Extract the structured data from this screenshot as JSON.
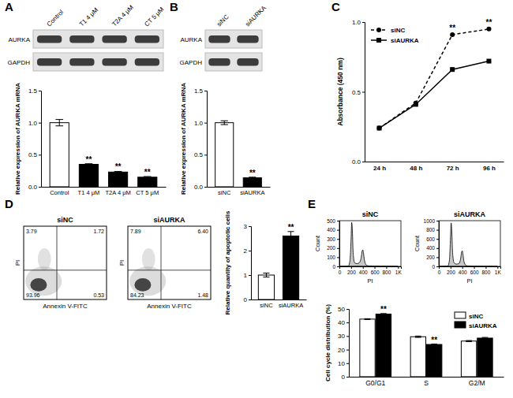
{
  "chart_data": [
    {
      "type": "blot",
      "panel": "A",
      "rows": [
        "AURKA",
        "GAPDH"
      ],
      "lanes": [
        "Control",
        "T1 4 μM",
        "T2A 4 μM",
        "CT 5 μM"
      ]
    },
    {
      "type": "bar",
      "y_label": "Relative expression of AURKA mRNA",
      "categories": [
        "Control",
        "T1 4 μM",
        "T2A 4 μM",
        "CT 5 μM"
      ],
      "values": [
        1.0,
        0.35,
        0.23,
        0.15
      ],
      "errors": [
        0.05,
        0.01,
        0.01,
        0.01
      ],
      "annotations": [
        null,
        "**",
        "**",
        "**"
      ],
      "ylim": [
        0,
        1.5
      ],
      "yticks": [
        {
          "value": 0,
          "label": "0.0"
        },
        0.5,
        {
          "value": 1,
          "label": "1.0"
        },
        1.5
      ],
      "colors": [
        "#ffffff",
        "#000000",
        "#000000",
        "#000000"
      ]
    },
    {
      "type": "blot",
      "panel": "B",
      "rows": [
        "AURKA",
        "GAPDH"
      ],
      "lanes": [
        "siNC",
        "siAURKA"
      ]
    },
    {
      "type": "bar",
      "y_label": "Relative expression of AURKA mRNA",
      "categories": [
        "siNC",
        "siAURKA"
      ],
      "values": [
        1.0,
        0.14
      ],
      "errors": [
        0.03,
        0.01
      ],
      "annotations": [
        null,
        "**"
      ],
      "ylim": [
        0,
        1.5
      ],
      "yticks": [
        {
          "value": 0,
          "label": "0.0"
        },
        0.5,
        {
          "value": 1,
          "label": "1.0"
        },
        1.5
      ],
      "colors": [
        "#ffffff",
        "#000000"
      ]
    },
    {
      "type": "line",
      "panel": "C",
      "y_label": "Absorbance (450 nm)",
      "x": [
        "24 h",
        "48 h",
        "72 h",
        "96 h"
      ],
      "series": [
        {
          "name": "siNC",
          "color": "#000000",
          "marker": "circle",
          "line_style": "dashed",
          "values": [
            0.24,
            0.42,
            0.91,
            0.95
          ]
        },
        {
          "name": "siAURKA",
          "color": "#000000",
          "marker": "square",
          "line_style": "solid",
          "values": [
            0.24,
            0.41,
            0.66,
            0.72
          ]
        }
      ],
      "annotations": [
        null,
        null,
        "**",
        "**"
      ],
      "ylim": [
        0,
        1.0
      ],
      "yticks": [
        {
          "value": 0,
          "label": "0.0"
        },
        0.5,
        {
          "value": 1,
          "label": "1.0"
        }
      ],
      "legend": "upper left"
    },
    {
      "type": "flow_quadrant",
      "panel": "D",
      "x_label": "Annexin V-FITC",
      "y_label": "PI",
      "plots": [
        {
          "title": "siNC",
          "quadrants": [
            "3.79",
            "1.72",
            "93.96",
            "0.53"
          ]
        },
        {
          "title": "siAURKA",
          "quadrants": [
            "7.89",
            "6.40",
            "84.23",
            "1.48"
          ]
        }
      ]
    },
    {
      "type": "bar",
      "y_label": "Relative quantity of apoptotic cells",
      "categories": [
        "siNC",
        "siAURKA"
      ],
      "values": [
        1.0,
        2.6
      ],
      "errors": [
        0.08,
        0.18
      ],
      "annotations": [
        null,
        "**"
      ],
      "ylim": [
        0,
        3
      ],
      "yticks": [
        0,
        1,
        2,
        3
      ],
      "colors": [
        "#ffffff",
        "#000000"
      ]
    },
    {
      "type": "area",
      "panel": "E",
      "title": "siNC",
      "x_label": "PI",
      "y_label": "Count",
      "x": [
        0,
        150,
        180,
        200,
        210,
        220,
        235,
        260,
        300,
        340,
        370,
        390,
        400,
        410,
        430,
        460,
        500,
        600,
        1000
      ],
      "values": [
        0,
        2,
        60,
        300,
        480,
        420,
        150,
        40,
        30,
        40,
        90,
        170,
        180,
        150,
        60,
        15,
        5,
        2,
        0
      ],
      "xlim": [
        0,
        1050
      ],
      "xticks": [
        0,
        200,
        400,
        600,
        800,
        {
          "value": 1000,
          "label": "1K"
        }
      ],
      "ylim": [
        0,
        500
      ],
      "yticks": [
        0,
        100,
        200,
        300,
        400,
        500
      ],
      "color": "#c8c8c8"
    },
    {
      "type": "area",
      "title": "siAURKA",
      "x_label": "PI",
      "y_label": "Count",
      "x": [
        0,
        150,
        180,
        200,
        210,
        220,
        235,
        260,
        300,
        340,
        370,
        390,
        400,
        410,
        430,
        460,
        500,
        600,
        1000
      ],
      "values": [
        0,
        4,
        120,
        650,
        950,
        820,
        300,
        80,
        50,
        60,
        150,
        320,
        340,
        280,
        100,
        25,
        8,
        3,
        0
      ],
      "xlim": [
        0,
        1050
      ],
      "xticks": [
        0,
        200,
        400,
        600,
        800,
        {
          "value": 1000,
          "label": "1K"
        }
      ],
      "ylim": [
        0,
        1000
      ],
      "yticks": [
        0,
        200,
        400,
        600,
        800,
        1000
      ],
      "color": "#c8c8c8"
    },
    {
      "type": "bar",
      "y_label": "Cell cycle distribution (%)",
      "categories": [
        "G0/G1",
        "S",
        "G2/M"
      ],
      "series": [
        {
          "name": "siNC",
          "color": "#ffffff",
          "values": [
            42.5,
            29.5,
            26.3
          ],
          "errors": [
            0.3,
            0.5,
            0.4
          ]
        },
        {
          "name": "siAURKA",
          "color": "#000000",
          "values": [
            46.2,
            23.8,
            28.5
          ],
          "errors": [
            0.4,
            0.3,
            0.5
          ],
          "annotations": [
            "**",
            "**",
            null
          ]
        }
      ],
      "ylim": [
        0,
        50
      ],
      "yticks": [
        0,
        10,
        20,
        30,
        40,
        50
      ],
      "legend": "upper right"
    }
  ]
}
